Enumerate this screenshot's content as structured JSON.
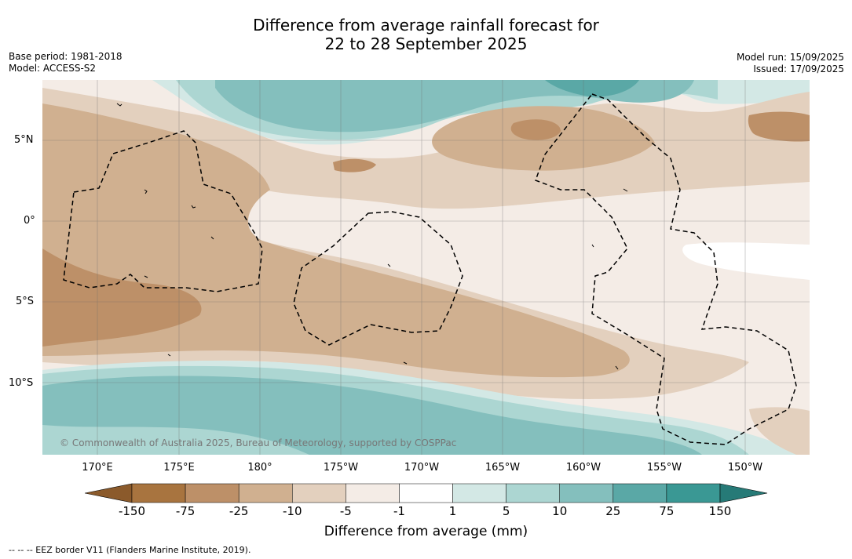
{
  "title": {
    "line1": "Difference from average rainfall forecast for",
    "line2": "22 to 28 September 2025"
  },
  "meta": {
    "base_period": "Base period: 1981-2018",
    "model": "Model: ACCESS-S2",
    "model_run": "Model run: 15/09/2025",
    "issued": "Issued: 17/09/2025"
  },
  "map": {
    "lat_labels": [
      "5°N",
      "0°",
      "5°S",
      "10°S"
    ],
    "lon_labels": [
      "170°E",
      "175°E",
      "180°",
      "175°W",
      "170°W",
      "165°W",
      "160°W",
      "155°W",
      "150°W"
    ],
    "copyright": "© Commonwealth of Australia 2025, Bureau of Meteorology, supported by COSPPac"
  },
  "legend": {
    "title": "Difference from average (mm)",
    "ticks": [
      "-150",
      "-75",
      "-25",
      "-10",
      "-5",
      "-1",
      "1",
      "5",
      "10",
      "25",
      "75",
      "150"
    ],
    "colors": [
      "#8b5a2b",
      "#a8743f",
      "#bd9068",
      "#d0b090",
      "#e3d0be",
      "#f4ece6",
      "#ffffff",
      "#d3e8e5",
      "#acd6d2",
      "#84bfbd",
      "#5aa8a6",
      "#3a9894",
      "#267a77"
    ]
  },
  "footer": {
    "eez": "--  --  -- EEZ border V11 (Flanders Marine Institute, 2019)."
  }
}
